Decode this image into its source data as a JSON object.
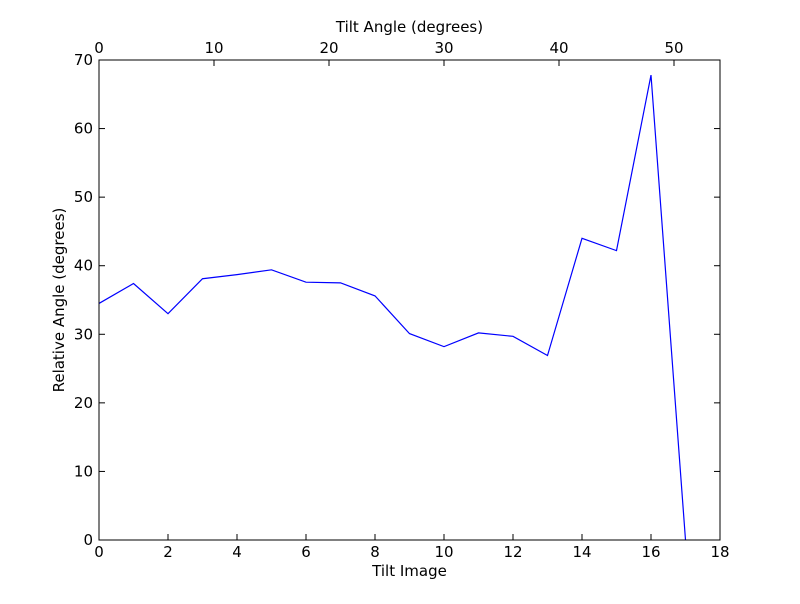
{
  "chart_data": {
    "type": "line",
    "title": "",
    "xlabel": "Tilt Image",
    "ylabel": "Relative Angle (degrees)",
    "x2label": "Tilt Angle (degrees)",
    "xlim": [
      0,
      18
    ],
    "ylim": [
      0,
      70
    ],
    "x2lim": [
      0,
      54
    ],
    "xticks": [
      0,
      2,
      4,
      6,
      8,
      10,
      12,
      14,
      16,
      18
    ],
    "yticks": [
      0,
      10,
      20,
      30,
      40,
      50,
      60,
      70
    ],
    "x2ticks": [
      0,
      10,
      20,
      30,
      40,
      50
    ],
    "grid": false,
    "legend": "none",
    "line_color": "#0000ff",
    "series": [
      {
        "x": [
          0,
          1,
          2,
          3,
          4,
          5,
          6,
          7,
          8,
          9,
          10,
          11,
          12,
          13,
          14,
          15,
          16,
          17
        ],
        "values": [
          34.5,
          37.4,
          33.0,
          38.1,
          38.7,
          39.4,
          37.6,
          37.5,
          35.6,
          30.1,
          28.2,
          30.2,
          29.7,
          26.9,
          44.0,
          42.2,
          67.8,
          0
        ]
      }
    ]
  }
}
